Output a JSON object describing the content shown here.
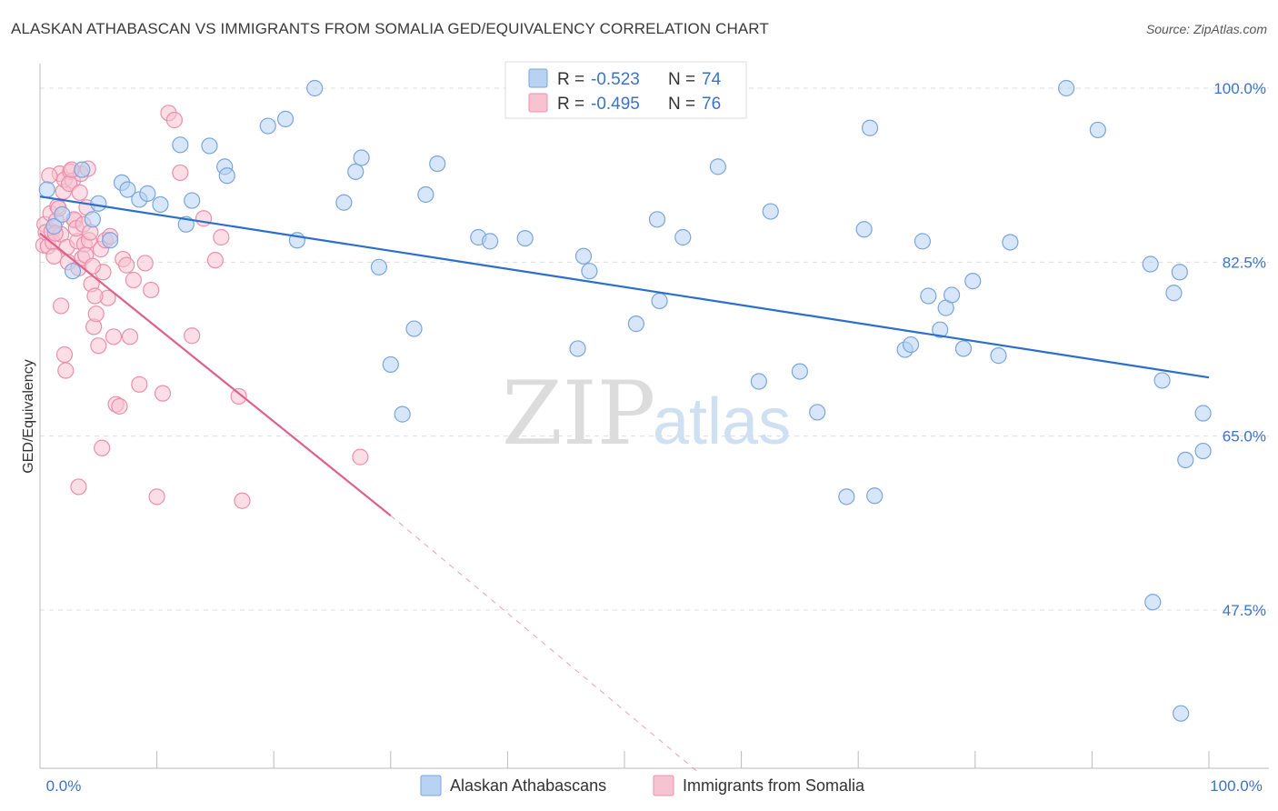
{
  "title": "ALASKAN ATHABASCAN VS IMMIGRANTS FROM SOMALIA GED/EQUIVALENCY CORRELATION CHART",
  "source": "Source: ZipAtlas.com",
  "watermark": {
    "zip": "ZIP",
    "atlas": "atlas"
  },
  "colors": {
    "blue_fill": "#b7d2f2",
    "blue_stroke": "#7aa6dc",
    "blue_line": "#2a6fcb",
    "pink_fill": "#f7c3d2",
    "pink_stroke": "#ec8fab",
    "pink_line": "#e0608a",
    "tick_text": "#3b73c8",
    "grid": "#dddddd"
  },
  "stats": {
    "r_label": "R =",
    "n_label": "N =",
    "blue": {
      "r": "-0.523",
      "n": "74"
    },
    "pink": {
      "r": "-0.495",
      "n": "76"
    }
  },
  "chart_data": {
    "type": "scatter",
    "title": "ALASKAN ATHABASCAN VS IMMIGRANTS FROM SOMALIA GED/EQUIVALENCY CORRELATION CHART",
    "xlabel": "",
    "ylabel": "GED/Equivalency",
    "xlim": [
      0,
      100
    ],
    "ylim": [
      31,
      102
    ],
    "x_tick_labels": [
      "0.0%",
      "100.0%"
    ],
    "y_ticks": [
      47.5,
      65.0,
      82.5,
      100.0
    ],
    "y_tick_labels": [
      "47.5%",
      "65.0%",
      "82.5%",
      "100.0%"
    ],
    "grid": true,
    "legend_position": "bottom",
    "series": [
      {
        "name": "Alaskan Athabascans",
        "color": "#b7d2f2",
        "points": [
          [
            2.8,
            81.6
          ],
          [
            3.6,
            91.8
          ],
          [
            5,
            88.4
          ],
          [
            4.5,
            86.8
          ],
          [
            6,
            84.7
          ],
          [
            7,
            90.5
          ],
          [
            7.5,
            89.8
          ],
          [
            8.5,
            88.8
          ],
          [
            9.2,
            89.4
          ],
          [
            10.3,
            88.3
          ],
          [
            12,
            94.3
          ],
          [
            12.5,
            86.3
          ],
          [
            13,
            88.7
          ],
          [
            14.5,
            94.2
          ],
          [
            15.8,
            92.1
          ],
          [
            16,
            91.2
          ],
          [
            19.5,
            96.2
          ],
          [
            21,
            96.9
          ],
          [
            22,
            84.7
          ],
          [
            26,
            88.5
          ],
          [
            27,
            91.6
          ],
          [
            29,
            82.0
          ],
          [
            30,
            72.2
          ],
          [
            31,
            67.2
          ],
          [
            32,
            75.8
          ],
          [
            33,
            89.3
          ],
          [
            34,
            92.4
          ],
          [
            37.5,
            85.0
          ],
          [
            41.5,
            84.9
          ],
          [
            42.5,
            100.0
          ],
          [
            46,
            73.8
          ],
          [
            46.5,
            83.1
          ],
          [
            47,
            81.6
          ],
          [
            51,
            76.3
          ],
          [
            53,
            78.6
          ],
          [
            55,
            85.0
          ],
          [
            58,
            92.1
          ],
          [
            61.5,
            70.5
          ],
          [
            62.5,
            87.6
          ],
          [
            65,
            71.5
          ],
          [
            66.5,
            67.4
          ],
          [
            69,
            58.9
          ],
          [
            70.5,
            85.8
          ],
          [
            71,
            96.0
          ],
          [
            74,
            73.7
          ],
          [
            74.5,
            74.2
          ],
          [
            75.5,
            84.6
          ],
          [
            76,
            79.1
          ],
          [
            77,
            75.7
          ],
          [
            77.5,
            77.9
          ],
          [
            78,
            79.2
          ],
          [
            79,
            73.8
          ],
          [
            79.8,
            80.6
          ],
          [
            82,
            73.1
          ],
          [
            83,
            84.5
          ],
          [
            90.5,
            95.8
          ],
          [
            95,
            82.3
          ],
          [
            96,
            70.6
          ],
          [
            97,
            79.4
          ],
          [
            97.5,
            81.5
          ],
          [
            98,
            62.6
          ],
          [
            99.5,
            63.5
          ],
          [
            99.5,
            67.3
          ],
          [
            97.6,
            37.1
          ],
          [
            95.2,
            48.3
          ],
          [
            87.8,
            100.0
          ],
          [
            71.4,
            59.0
          ],
          [
            52.8,
            86.8
          ],
          [
            38.5,
            84.6
          ],
          [
            27.5,
            93.0
          ],
          [
            23.5,
            100.0
          ],
          [
            0.6,
            89.8
          ],
          [
            1.2,
            86.1
          ],
          [
            1.9,
            87.3
          ]
        ]
      },
      {
        "name": "Immigrants from Somalia",
        "color": "#f7c3d2",
        "points": [
          [
            0.3,
            84.2
          ],
          [
            0.4,
            86.3
          ],
          [
            0.5,
            85.5
          ],
          [
            0.7,
            84.1
          ],
          [
            0.9,
            87.4
          ],
          [
            1.0,
            85.6
          ],
          [
            1.1,
            84.5
          ],
          [
            1.2,
            83.1
          ],
          [
            1.4,
            86.7
          ],
          [
            1.5,
            88.1
          ],
          [
            1.7,
            91.4
          ],
          [
            1.8,
            85.3
          ],
          [
            2.0,
            89.6
          ],
          [
            2.1,
            90.8
          ],
          [
            2.3,
            84.0
          ],
          [
            2.4,
            82.5
          ],
          [
            2.6,
            91.6
          ],
          [
            2.8,
            90.7
          ],
          [
            3.0,
            86.7
          ],
          [
            3.2,
            84.6
          ],
          [
            3.3,
            81.9
          ],
          [
            3.5,
            91.4
          ],
          [
            3.6,
            82.9
          ],
          [
            3.8,
            84.3
          ],
          [
            4.0,
            88.0
          ],
          [
            4.2,
            84.7
          ],
          [
            4.4,
            80.3
          ],
          [
            4.6,
            76.0
          ],
          [
            4.8,
            77.3
          ],
          [
            5.0,
            74.1
          ],
          [
            5.2,
            83.8
          ],
          [
            5.4,
            81.5
          ],
          [
            5.6,
            84.7
          ],
          [
            5.8,
            78.9
          ],
          [
            6.0,
            85.1
          ],
          [
            6.3,
            75.0
          ],
          [
            6.5,
            68.2
          ],
          [
            6.8,
            68.0
          ],
          [
            7.1,
            82.8
          ],
          [
            7.4,
            82.2
          ],
          [
            7.7,
            75.0
          ],
          [
            8.0,
            80.7
          ],
          [
            8.5,
            70.2
          ],
          [
            9.0,
            82.4
          ],
          [
            9.5,
            79.7
          ],
          [
            10.0,
            58.9
          ],
          [
            10.5,
            69.3
          ],
          [
            11,
            97.5
          ],
          [
            11.5,
            96.8
          ],
          [
            12,
            91.5
          ],
          [
            13,
            75.1
          ],
          [
            14,
            86.9
          ],
          [
            15,
            82.7
          ],
          [
            15.5,
            85.0
          ],
          [
            17,
            69.0
          ],
          [
            17.3,
            58.5
          ],
          [
            1.8,
            78.1
          ],
          [
            2.2,
            71.6
          ],
          [
            2.5,
            90.4
          ],
          [
            2.7,
            91.8
          ],
          [
            2.9,
            86.8
          ],
          [
            3.1,
            85.9
          ],
          [
            3.4,
            89.5
          ],
          [
            3.7,
            86.3
          ],
          [
            3.9,
            83.2
          ],
          [
            4.1,
            91.9
          ],
          [
            4.3,
            85.5
          ],
          [
            4.5,
            82.1
          ],
          [
            4.7,
            79.1
          ],
          [
            2.1,
            73.2
          ],
          [
            3.3,
            59.9
          ],
          [
            5.3,
            63.8
          ],
          [
            0.8,
            91.2
          ],
          [
            1.3,
            85.4
          ],
          [
            1.6,
            87.9
          ],
          [
            27.4,
            62.9
          ]
        ]
      }
    ],
    "trendlines": [
      {
        "series": "Alaskan Athabascans",
        "x": [
          0,
          100
        ],
        "y": [
          89.1,
          70.9
        ],
        "style": "solid"
      },
      {
        "series": "Immigrants from Somalia",
        "x": [
          0,
          30
        ],
        "y": [
          85.4,
          57.0
        ],
        "style": "solid"
      },
      {
        "series": "Immigrants from Somalia",
        "x": [
          30,
          56.5
        ],
        "y": [
          57.0,
          31.0
        ],
        "style": "dashed"
      }
    ]
  }
}
